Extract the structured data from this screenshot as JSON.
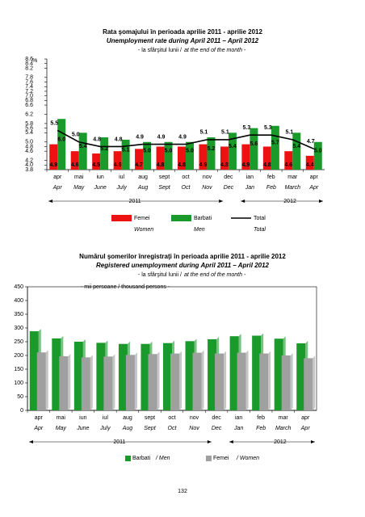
{
  "chart_data": [
    {
      "type": "bar-line",
      "title": "Rata şomajului în perioada aprilie 2011 - aprilie 2012",
      "title_en": "Unemployment rate during April 2011 – April 2012",
      "subtitle": "- la sfârşitul lunii /",
      "subtitle_en": "at the end of the month -",
      "y_unit": "%",
      "categories": [
        "apr",
        "mai",
        "iun",
        "iul",
        "aug",
        "sept",
        "oct",
        "nov",
        "dec",
        "ian",
        "feb",
        "mar",
        "apr"
      ],
      "categories_en": [
        "Apr",
        "May",
        "June",
        "July",
        "Aug",
        "Sept",
        "Oct",
        "Nov",
        "Dec",
        "Jan",
        "Feb",
        "March",
        "Apr"
      ],
      "groups": [
        "2011",
        "2012"
      ],
      "series": [
        {
          "name": "Femei",
          "name_en": "Women",
          "color": "#ee1111",
          "values": [
            4.9,
            4.6,
            4.5,
            4.6,
            4.7,
            4.8,
            4.8,
            4.9,
            4.8,
            4.9,
            4.8,
            4.6,
            4.4
          ],
          "value_labels": [
            "4.9",
            "4.6",
            "4.5",
            "4.6",
            "4.7",
            "4.8",
            "4.8",
            "4.9",
            "4.8",
            "4.9",
            "4.8",
            "4.6",
            "4.4"
          ]
        },
        {
          "name": "Barbati",
          "name_en": "Men",
          "color": "#1a9a2a",
          "values": [
            6.0,
            5.4,
            5.2,
            5.1,
            5.0,
            5.0,
            5.0,
            5.2,
            5.4,
            5.6,
            5.7,
            5.4,
            5.0
          ],
          "value_labels": [
            "6.0",
            "5.4",
            "5.2",
            "5.1",
            "5.0",
            "5.0",
            "5.0",
            "5.2",
            "5.4",
            "5.6",
            "5.7",
            "5.4",
            "5.0"
          ]
        },
        {
          "name": "Total",
          "name_en": "Total",
          "type": "line",
          "color": "#000000",
          "values": [
            5.5,
            5.0,
            4.8,
            4.8,
            4.9,
            4.9,
            4.9,
            5.1,
            5.1,
            5.3,
            5.3,
            5.1,
            4.7
          ],
          "value_labels": [
            "5.5",
            "5.0",
            "4.8",
            "4.8",
            "4.9",
            "4.9",
            "4.9",
            "5.1",
            "5.1",
            "5.3",
            "5.3",
            "5.1",
            "4.7"
          ]
        }
      ],
      "ylim": [
        3.8,
        8.6
      ],
      "yticks": [
        3.8,
        {
          "value": 4,
          "label": "4.0"
        },
        4.2,
        4.6,
        4.8,
        {
          "value": 5,
          "label": "5.0"
        },
        5.4,
        5.6,
        5.8,
        6.2,
        6.6,
        6.8,
        {
          "value": 7,
          "label": "7.0"
        },
        7.2,
        7.4,
        7.6,
        7.8,
        8.2,
        8.4,
        8.6
      ]
    },
    {
      "type": "bar",
      "title": "Numărul şomerilor înregistraţi în perioada aprilie 2011 - aprilie 2012",
      "title_en": "Registered unemployment during April 2011 – April 2012",
      "subtitle": "- la sfârşitul lunii /",
      "subtitle_en": "at the end of the month -",
      "y_unit": "- mii persoane / thousand persons -",
      "categories": [
        "apr",
        "mai",
        "iun",
        "iul",
        "aug",
        "sept",
        "oct",
        "nov",
        "dec",
        "ian",
        "feb",
        "mar",
        "apr"
      ],
      "categories_en": [
        "Apr",
        "May",
        "June",
        "July",
        "Aug",
        "Sept",
        "Oct",
        "Nov",
        "Dec",
        "Jan",
        "Feb",
        "March",
        "Apr"
      ],
      "groups": [
        "2011",
        "2012"
      ],
      "series": [
        {
          "name": "Barbati",
          "name_en": "/ Men",
          "color": "#1a9a2a",
          "values": [
            288,
            262,
            250,
            246,
            242,
            242,
            245,
            252,
            259,
            270,
            272,
            261,
            244
          ]
        },
        {
          "name": "Femei",
          "name_en": "/ Women",
          "color": "#a0a0a0",
          "values": [
            211,
            197,
            193,
            196,
            202,
            205,
            207,
            210,
            207,
            210,
            207,
            200,
            190
          ]
        }
      ],
      "ylim": [
        0,
        450
      ],
      "yticks": [
        0,
        50,
        100,
        150,
        200,
        250,
        300,
        350,
        400,
        450
      ]
    }
  ],
  "page_number": "132"
}
